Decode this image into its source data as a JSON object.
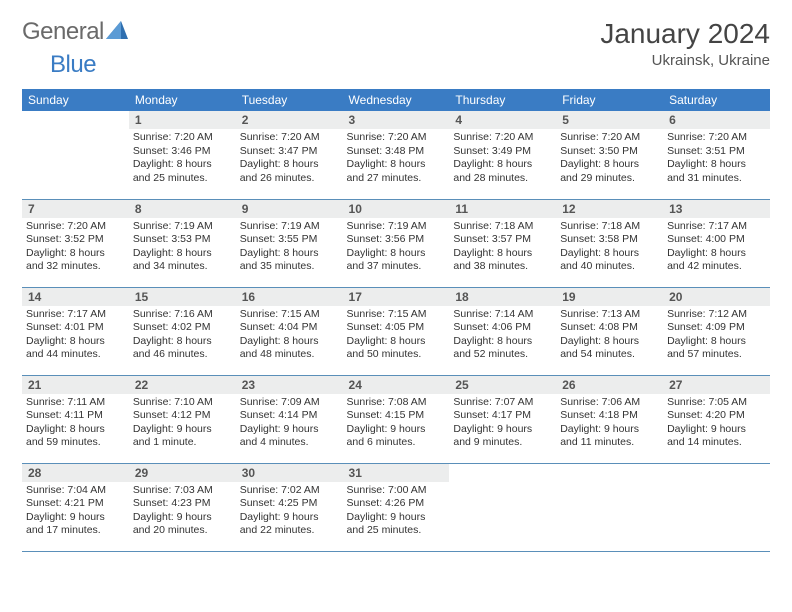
{
  "logo": {
    "text1": "General",
    "text2": "Blue"
  },
  "title": "January 2024",
  "location": "Ukrainsk, Ukraine",
  "styling": {
    "header_bg": "#3a7cc4",
    "header_fg": "#ffffff",
    "daynum_bg": "#eceded",
    "row_border": "#5a8fb9",
    "page_bg": "#ffffff",
    "logo_gray": "#6a6a6a",
    "logo_blue": "#3a7cc4",
    "title_fontsize": 28,
    "header_fontsize": 12,
    "detail_fontsize": 10.5
  },
  "days": [
    "Sunday",
    "Monday",
    "Tuesday",
    "Wednesday",
    "Thursday",
    "Friday",
    "Saturday"
  ],
  "weeks": [
    [
      null,
      {
        "n": "1",
        "sr": "Sunrise: 7:20 AM",
        "ss": "Sunset: 3:46 PM",
        "dl": "Daylight: 8 hours and 25 minutes."
      },
      {
        "n": "2",
        "sr": "Sunrise: 7:20 AM",
        "ss": "Sunset: 3:47 PM",
        "dl": "Daylight: 8 hours and 26 minutes."
      },
      {
        "n": "3",
        "sr": "Sunrise: 7:20 AM",
        "ss": "Sunset: 3:48 PM",
        "dl": "Daylight: 8 hours and 27 minutes."
      },
      {
        "n": "4",
        "sr": "Sunrise: 7:20 AM",
        "ss": "Sunset: 3:49 PM",
        "dl": "Daylight: 8 hours and 28 minutes."
      },
      {
        "n": "5",
        "sr": "Sunrise: 7:20 AM",
        "ss": "Sunset: 3:50 PM",
        "dl": "Daylight: 8 hours and 29 minutes."
      },
      {
        "n": "6",
        "sr": "Sunrise: 7:20 AM",
        "ss": "Sunset: 3:51 PM",
        "dl": "Daylight: 8 hours and 31 minutes."
      }
    ],
    [
      {
        "n": "7",
        "sr": "Sunrise: 7:20 AM",
        "ss": "Sunset: 3:52 PM",
        "dl": "Daylight: 8 hours and 32 minutes."
      },
      {
        "n": "8",
        "sr": "Sunrise: 7:19 AM",
        "ss": "Sunset: 3:53 PM",
        "dl": "Daylight: 8 hours and 34 minutes."
      },
      {
        "n": "9",
        "sr": "Sunrise: 7:19 AM",
        "ss": "Sunset: 3:55 PM",
        "dl": "Daylight: 8 hours and 35 minutes."
      },
      {
        "n": "10",
        "sr": "Sunrise: 7:19 AM",
        "ss": "Sunset: 3:56 PM",
        "dl": "Daylight: 8 hours and 37 minutes."
      },
      {
        "n": "11",
        "sr": "Sunrise: 7:18 AM",
        "ss": "Sunset: 3:57 PM",
        "dl": "Daylight: 8 hours and 38 minutes."
      },
      {
        "n": "12",
        "sr": "Sunrise: 7:18 AM",
        "ss": "Sunset: 3:58 PM",
        "dl": "Daylight: 8 hours and 40 minutes."
      },
      {
        "n": "13",
        "sr": "Sunrise: 7:17 AM",
        "ss": "Sunset: 4:00 PM",
        "dl": "Daylight: 8 hours and 42 minutes."
      }
    ],
    [
      {
        "n": "14",
        "sr": "Sunrise: 7:17 AM",
        "ss": "Sunset: 4:01 PM",
        "dl": "Daylight: 8 hours and 44 minutes."
      },
      {
        "n": "15",
        "sr": "Sunrise: 7:16 AM",
        "ss": "Sunset: 4:02 PM",
        "dl": "Daylight: 8 hours and 46 minutes."
      },
      {
        "n": "16",
        "sr": "Sunrise: 7:15 AM",
        "ss": "Sunset: 4:04 PM",
        "dl": "Daylight: 8 hours and 48 minutes."
      },
      {
        "n": "17",
        "sr": "Sunrise: 7:15 AM",
        "ss": "Sunset: 4:05 PM",
        "dl": "Daylight: 8 hours and 50 minutes."
      },
      {
        "n": "18",
        "sr": "Sunrise: 7:14 AM",
        "ss": "Sunset: 4:06 PM",
        "dl": "Daylight: 8 hours and 52 minutes."
      },
      {
        "n": "19",
        "sr": "Sunrise: 7:13 AM",
        "ss": "Sunset: 4:08 PM",
        "dl": "Daylight: 8 hours and 54 minutes."
      },
      {
        "n": "20",
        "sr": "Sunrise: 7:12 AM",
        "ss": "Sunset: 4:09 PM",
        "dl": "Daylight: 8 hours and 57 minutes."
      }
    ],
    [
      {
        "n": "21",
        "sr": "Sunrise: 7:11 AM",
        "ss": "Sunset: 4:11 PM",
        "dl": "Daylight: 8 hours and 59 minutes."
      },
      {
        "n": "22",
        "sr": "Sunrise: 7:10 AM",
        "ss": "Sunset: 4:12 PM",
        "dl": "Daylight: 9 hours and 1 minute."
      },
      {
        "n": "23",
        "sr": "Sunrise: 7:09 AM",
        "ss": "Sunset: 4:14 PM",
        "dl": "Daylight: 9 hours and 4 minutes."
      },
      {
        "n": "24",
        "sr": "Sunrise: 7:08 AM",
        "ss": "Sunset: 4:15 PM",
        "dl": "Daylight: 9 hours and 6 minutes."
      },
      {
        "n": "25",
        "sr": "Sunrise: 7:07 AM",
        "ss": "Sunset: 4:17 PM",
        "dl": "Daylight: 9 hours and 9 minutes."
      },
      {
        "n": "26",
        "sr": "Sunrise: 7:06 AM",
        "ss": "Sunset: 4:18 PM",
        "dl": "Daylight: 9 hours and 11 minutes."
      },
      {
        "n": "27",
        "sr": "Sunrise: 7:05 AM",
        "ss": "Sunset: 4:20 PM",
        "dl": "Daylight: 9 hours and 14 minutes."
      }
    ],
    [
      {
        "n": "28",
        "sr": "Sunrise: 7:04 AM",
        "ss": "Sunset: 4:21 PM",
        "dl": "Daylight: 9 hours and 17 minutes."
      },
      {
        "n": "29",
        "sr": "Sunrise: 7:03 AM",
        "ss": "Sunset: 4:23 PM",
        "dl": "Daylight: 9 hours and 20 minutes."
      },
      {
        "n": "30",
        "sr": "Sunrise: 7:02 AM",
        "ss": "Sunset: 4:25 PM",
        "dl": "Daylight: 9 hours and 22 minutes."
      },
      {
        "n": "31",
        "sr": "Sunrise: 7:00 AM",
        "ss": "Sunset: 4:26 PM",
        "dl": "Daylight: 9 hours and 25 minutes."
      },
      null,
      null,
      null
    ]
  ]
}
